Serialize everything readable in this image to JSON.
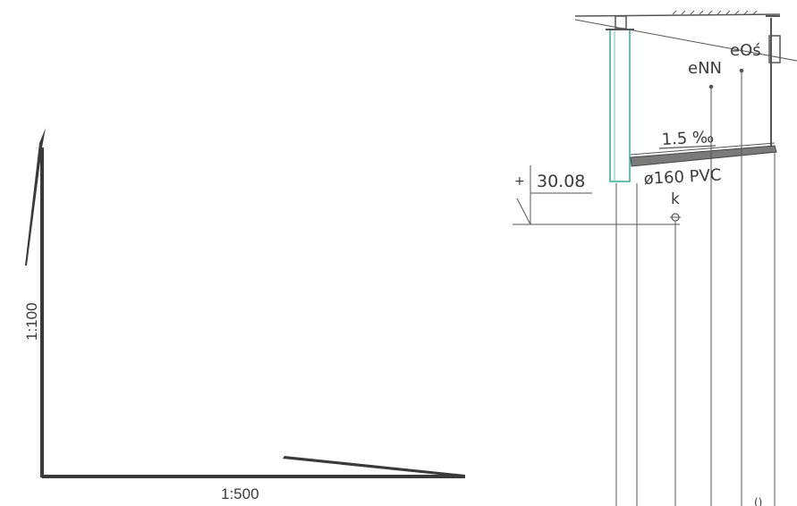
{
  "scale_axes": {
    "vertical_label": "1:100",
    "horizontal_label": "1:500"
  },
  "section": {
    "level_value": "30.08",
    "level_marker": "+",
    "slope_label": "1.5 ‰",
    "pipe_label": "ø160 PVC",
    "point_k": "k",
    "label_enn": "eNN",
    "label_eos": "eOś",
    "corner_mark": "()"
  },
  "colors": {
    "ink": "#3a3a3a",
    "pipe_accent": "#3fb39a"
  }
}
